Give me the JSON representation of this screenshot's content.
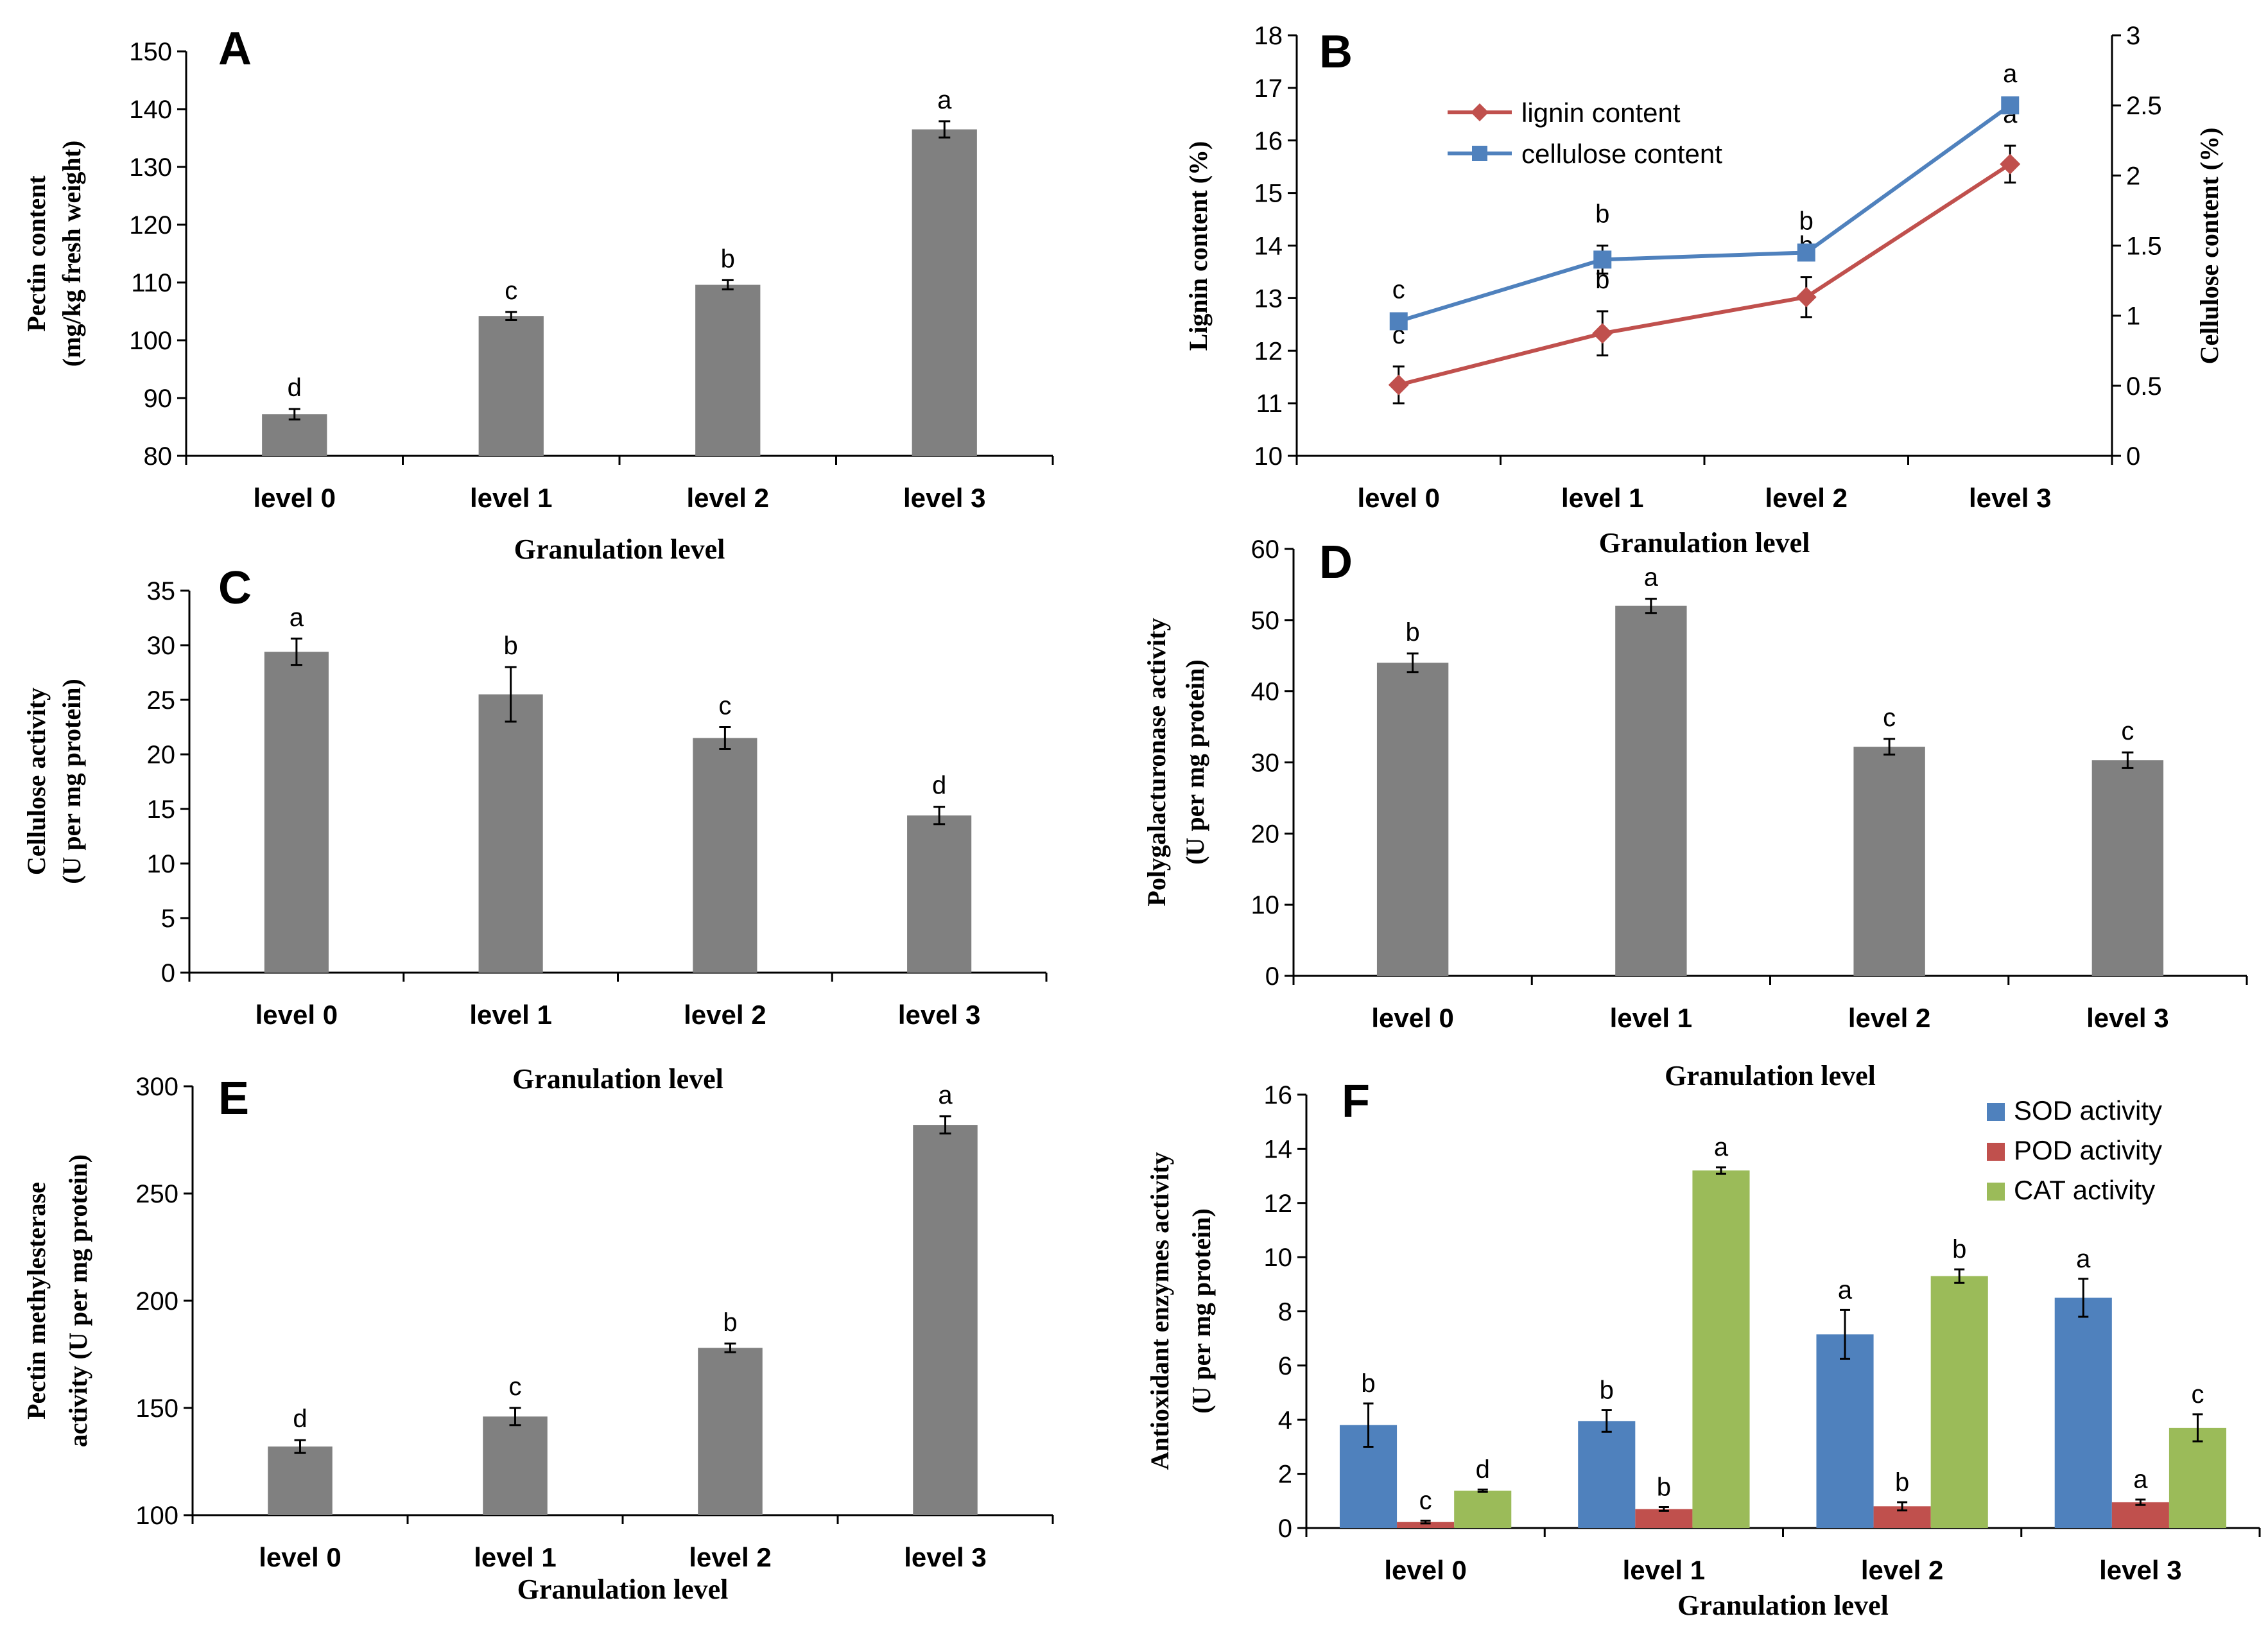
{
  "chart_data": [
    {
      "id": "A",
      "type": "bar",
      "panel_label": "A",
      "categories": [
        "level 0",
        "level 1",
        "level 2",
        "level 3"
      ],
      "values": [
        87.2,
        104.2,
        109.6,
        136.5
      ],
      "errors": [
        0.9,
        0.7,
        0.8,
        1.4
      ],
      "sig": [
        "d",
        "c",
        "b",
        "a"
      ],
      "ylabel_lines": [
        "Pectin content",
        "(mg/kg fresh weight)"
      ],
      "xlabel": "Granulation level",
      "ylim": [
        80,
        150
      ],
      "yticks": [
        80,
        90,
        100,
        110,
        120,
        130,
        140,
        150
      ],
      "bar_color": "#808080"
    },
    {
      "id": "B",
      "type": "line",
      "panel_label": "B",
      "categories": [
        "level 0",
        "level 1",
        "level 2",
        "level 3"
      ],
      "series": [
        {
          "name": "lignin content",
          "axis": "left",
          "values": [
            11.35,
            12.33,
            13.02,
            15.55
          ],
          "errors": [
            0.35,
            0.42,
            0.38,
            0.35
          ],
          "sig": [
            "c",
            "b",
            "b",
            "a"
          ],
          "color": "#c0504d",
          "marker": "diamond"
        },
        {
          "name": "cellulose content",
          "axis": "right",
          "values": [
            0.96,
            1.4,
            1.45,
            2.5
          ],
          "errors": [
            0.0,
            0.1,
            0.0,
            0.0
          ],
          "sig": [
            "c",
            "b",
            "b",
            "a"
          ],
          "color": "#4f81bd",
          "marker": "square"
        }
      ],
      "ylabel_lines": [
        "Lignin content (%)"
      ],
      "y2label_lines": [
        "Cellulose content (%)"
      ],
      "xlabel": "Granulation level",
      "ylim": [
        10,
        18
      ],
      "yticks": [
        10,
        11,
        12,
        13,
        14,
        15,
        16,
        17,
        18
      ],
      "y2lim": [
        0,
        3
      ],
      "y2ticks": [
        0,
        0.5,
        1,
        1.5,
        2,
        2.5,
        3
      ],
      "legend_position": "top-left"
    },
    {
      "id": "C",
      "type": "bar",
      "panel_label": "C",
      "categories": [
        "level 0",
        "level 1",
        "level 2",
        "level 3"
      ],
      "values": [
        29.4,
        25.5,
        21.5,
        14.4
      ],
      "errors": [
        1.2,
        2.5,
        1.0,
        0.8
      ],
      "sig": [
        "a",
        "b",
        "c",
        "d"
      ],
      "ylabel_lines": [
        "Cellulose activity",
        "(U per mg protein)"
      ],
      "xlabel": "Granulation level",
      "ylim": [
        0,
        35
      ],
      "yticks": [
        0,
        5,
        10,
        15,
        20,
        25,
        30,
        35
      ],
      "bar_color": "#808080"
    },
    {
      "id": "D",
      "type": "bar",
      "panel_label": "D",
      "categories": [
        "level 0",
        "level 1",
        "level 2",
        "level 3"
      ],
      "values": [
        44.0,
        52.0,
        32.2,
        30.3
      ],
      "errors": [
        1.3,
        1.0,
        1.1,
        1.1
      ],
      "sig": [
        "b",
        "a",
        "c",
        "c"
      ],
      "ylabel_lines": [
        "Polygalacturonase activity",
        "(U per mg protein)"
      ],
      "xlabel": "Granulation level",
      "ylim": [
        0,
        60
      ],
      "yticks": [
        0,
        10,
        20,
        30,
        40,
        50,
        60
      ],
      "bar_color": "#808080"
    },
    {
      "id": "E",
      "type": "bar",
      "panel_label": "E",
      "categories": [
        "level 0",
        "level 1",
        "level 2",
        "level 3"
      ],
      "values": [
        132,
        146,
        178,
        282
      ],
      "errors": [
        3,
        4,
        2,
        4
      ],
      "sig": [
        "d",
        "c",
        "b",
        "a"
      ],
      "ylabel_lines": [
        "Pectin methylesterase",
        "activity (U per mg protein)"
      ],
      "xlabel": "Granulation level",
      "ylim": [
        100,
        300
      ],
      "yticks": [
        100,
        150,
        200,
        250,
        300
      ],
      "bar_color": "#808080"
    },
    {
      "id": "F",
      "type": "bar",
      "panel_label": "F",
      "categories": [
        "level 0",
        "level 1",
        "level 2",
        "level 3"
      ],
      "series": [
        {
          "name": "SOD activity",
          "values": [
            3.8,
            3.95,
            7.15,
            8.5
          ],
          "errors": [
            0.8,
            0.4,
            0.9,
            0.7
          ],
          "sig": [
            "b",
            "b",
            "a",
            "a"
          ],
          "color": "#4f81bd"
        },
        {
          "name": "POD activity",
          "values": [
            0.22,
            0.7,
            0.8,
            0.95
          ],
          "errors": [
            0.05,
            0.07,
            0.15,
            0.1
          ],
          "sig": [
            "c",
            "b",
            "b",
            "a"
          ],
          "color": "#c0504d"
        },
        {
          "name": "CAT activity",
          "values": [
            1.38,
            13.2,
            9.3,
            3.7
          ],
          "errors": [
            0.04,
            0.12,
            0.25,
            0.5
          ],
          "sig": [
            "d",
            "a",
            "b",
            "c"
          ],
          "color": "#9bbb59"
        }
      ],
      "ylabel_lines": [
        "Antioxidant enzymes activity",
        "(U per mg protein)"
      ],
      "xlabel": "Granulation level",
      "ylim": [
        0,
        16
      ],
      "yticks": [
        0,
        2,
        4,
        6,
        8,
        10,
        12,
        14,
        16
      ],
      "legend_position": "top-right"
    }
  ]
}
